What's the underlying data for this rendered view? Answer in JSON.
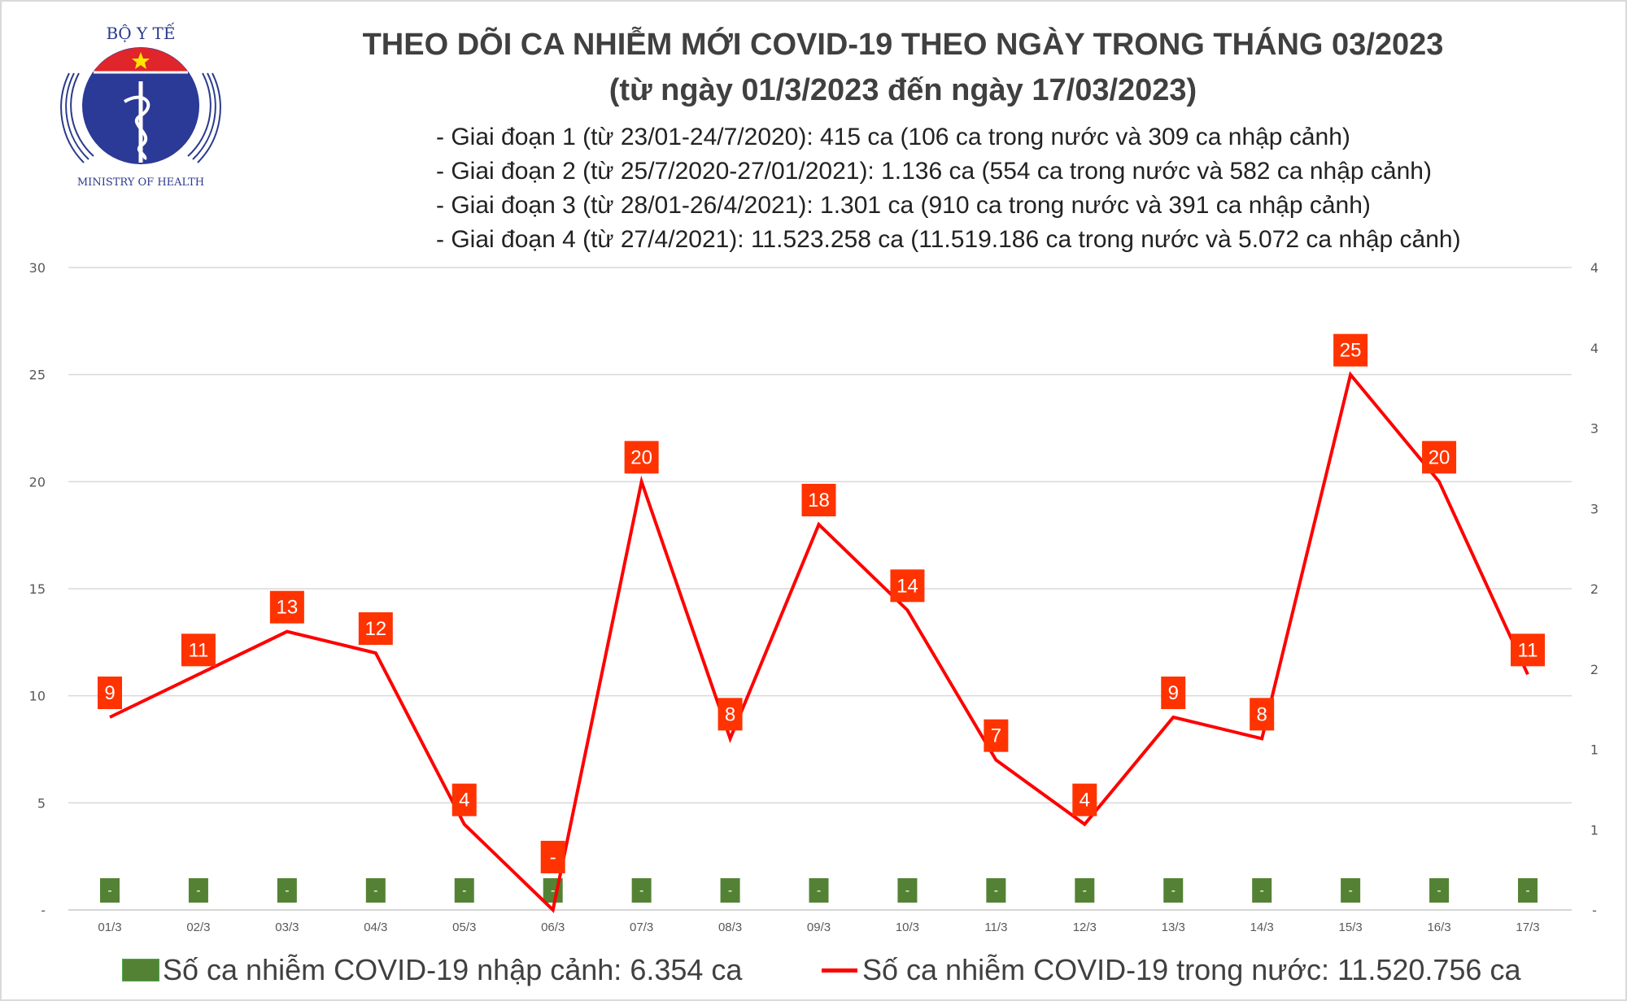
{
  "logo": {
    "top_text": "BỘ Y TẾ",
    "bottom_text": "MINISTRY OF HEALTH"
  },
  "header": {
    "title": "THEO DÕI CA NHIỄM MỚI COVID-19 THEO NGÀY TRONG THÁNG 03/2023",
    "subtitle": "(từ ngày 01/3/2023 đến ngày 17/03/2023)",
    "phases": [
      "- Giai đoạn 1 (từ 23/01-24/7/2020): 415 ca (106 ca trong nước và 309 ca nhập cảnh)",
      "- Giai đoạn 2 (từ 25/7/2020-27/01/2021): 1.136 ca (554 ca trong nước và 582 ca nhập cảnh)",
      "- Giai đoạn 3 (từ 28/01-26/4/2021): 1.301 ca (910 ca trong nước và 391 ca nhập cảnh)",
      "- Giai đoạn 4 (từ 27/4/2021): 11.523.258 ca (11.519.186 ca trong nước và 5.072 ca nhập cảnh)"
    ]
  },
  "chart_data": {
    "type": "bar+line",
    "title": "THEO DÕI CA NHIỄM MỚI COVID-19 THEO NGÀY TRONG THÁNG 03/2023",
    "categories": [
      "01/3",
      "02/3",
      "03/3",
      "04/3",
      "05/3",
      "06/3",
      "07/3",
      "08/3",
      "09/3",
      "10/3",
      "11/3",
      "12/3",
      "13/3",
      "14/3",
      "15/3",
      "16/3",
      "17/3"
    ],
    "series": [
      {
        "name": "Số ca nhiễm COVID-19 nhập cảnh: 6.354 ca",
        "type": "bar",
        "axis": "right",
        "color": "#548235",
        "values": [
          0,
          0,
          0,
          0,
          0,
          0,
          0,
          0,
          0,
          0,
          0,
          0,
          0,
          0,
          0,
          0,
          0
        ],
        "labels": [
          "-",
          "-",
          "-",
          "-",
          "-",
          "-",
          "-",
          "-",
          "-",
          "-",
          "-",
          "-",
          "-",
          "-",
          "-",
          "-",
          "-"
        ]
      },
      {
        "name": "Số ca nhiễm COVID-19 trong nước: 11.520.756 ca",
        "type": "line",
        "axis": "left",
        "color": "#ff0000",
        "values": [
          9,
          11,
          13,
          12,
          4,
          0,
          20,
          8,
          18,
          14,
          7,
          4,
          9,
          8,
          25,
          20,
          11
        ],
        "labels": [
          "9",
          "11",
          "13",
          "12",
          "4",
          "-",
          "20",
          "8",
          "18",
          "14",
          "7",
          "4",
          "9",
          "8",
          "25",
          "20",
          "11"
        ]
      }
    ],
    "left_axis": {
      "ylim": [
        0,
        30
      ],
      "ticks": [
        "-",
        "5",
        "10",
        "15",
        "20",
        "25",
        "30"
      ]
    },
    "right_axis": {
      "ylim": [
        0,
        4
      ],
      "ticks": [
        "-",
        "1",
        "1",
        "2",
        "2",
        "3",
        "3",
        "4",
        "4"
      ]
    },
    "label_color": "#ff3300",
    "grid": true,
    "legend": "bottom"
  },
  "legend": {
    "bar_label": "Số ca nhiễm COVID-19 nhập cảnh: 6.354 ca",
    "line_label": "Số ca nhiễm COVID-19 trong nước: 11.520.756 ca"
  }
}
